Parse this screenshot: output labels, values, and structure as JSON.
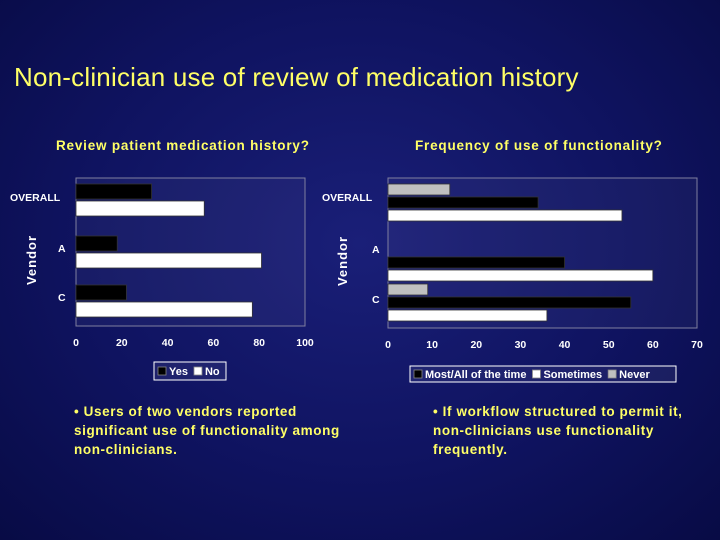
{
  "slide": {
    "title": "Non-clinician use of review of medication history",
    "bullets": [
      "• Users of two vendors reported significant use of functionality among non-clinicians.",
      "• If workflow structured to permit it, non-clinicians use functionality frequently."
    ]
  },
  "colors": {
    "background": "#0f1360",
    "title": "#ffff66",
    "axis_text": "#ffffff",
    "yes": "#000000",
    "no": "#ffffff",
    "most_all": "#000000",
    "sometimes": "#ffffff",
    "never": "#c0c0c0"
  },
  "chart_data": [
    {
      "type": "bar",
      "orientation": "horizontal",
      "title": "Review patient medication history?",
      "ylabel": "Vendor",
      "xlabel": "",
      "categories": [
        "OVERALL",
        "A",
        "C"
      ],
      "series": [
        {
          "name": "Yes",
          "color": "#000000",
          "values": [
            33,
            18,
            22
          ]
        },
        {
          "name": "No",
          "color": "#ffffff",
          "values": [
            56,
            81,
            77
          ]
        }
      ],
      "xlim": [
        0,
        100
      ],
      "xticks": [
        "0",
        "20",
        "40",
        "60",
        "80",
        "100"
      ],
      "grid": false,
      "legend_position": "bottom"
    },
    {
      "type": "bar",
      "orientation": "horizontal",
      "title": "Frequency of use of functionality?",
      "ylabel": "Vendor",
      "xlabel": "",
      "categories": [
        "OVERALL",
        "A",
        "C"
      ],
      "series": [
        {
          "name": "Never",
          "color": "#c0c0c0",
          "values": [
            14,
            0,
            9
          ]
        },
        {
          "name": "Most/All of the time",
          "color": "#000000",
          "values": [
            34,
            40,
            55
          ]
        },
        {
          "name": "Sometimes",
          "color": "#ffffff",
          "values": [
            53,
            60,
            36
          ]
        }
      ],
      "legend_order": [
        "Most/All of the time",
        "Sometimes",
        "Never"
      ],
      "xlim": [
        0,
        70
      ],
      "xticks": [
        "0",
        "10",
        "20",
        "30",
        "40",
        "50",
        "60",
        "70"
      ],
      "grid": false,
      "legend_position": "bottom"
    }
  ]
}
